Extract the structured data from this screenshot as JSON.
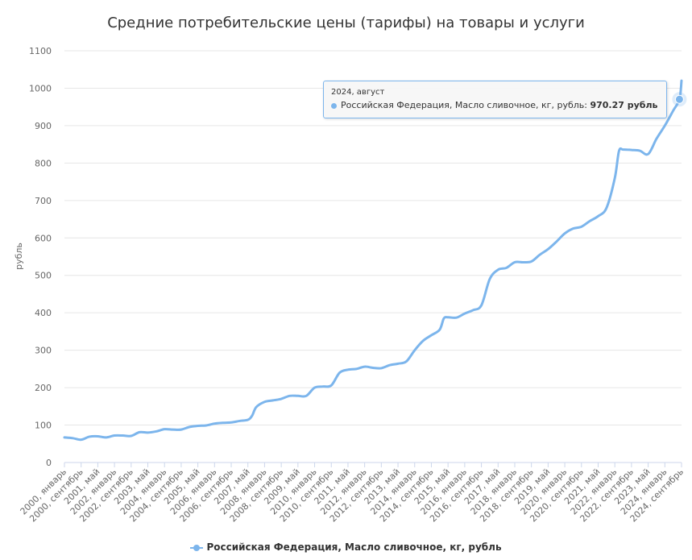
{
  "colors": {
    "series": "#7cb5ec",
    "grid": "#e6e6e6",
    "text": "#333333",
    "axis_text": "#666666"
  },
  "chart_data": {
    "type": "line",
    "title": "Средние потребительские цены (тарифы) на товары и услуги",
    "ylabel": "рубль",
    "ylim": [
      0,
      1100
    ],
    "yticks": [
      0,
      100,
      200,
      300,
      400,
      500,
      600,
      700,
      800,
      900,
      1000,
      1100
    ],
    "grid": true,
    "legend_position": "bottom-center",
    "xtick_labels": [
      "2000, январь",
      "2000, сентябрь",
      "2001, май",
      "2002, январь",
      "2002, сентябрь",
      "2003, май",
      "2004, январь",
      "2004, сентябрь",
      "2005, май",
      "2006, январь",
      "2006, сентябрь",
      "2007, май",
      "2008, январь",
      "2008, сентябрь",
      "2009, май",
      "2010, январь",
      "2010, сентябрь",
      "2011, май",
      "2012, январь",
      "2012, сентябрь",
      "2013, май",
      "2014, январь",
      "2014, сентябрь",
      "2015, май",
      "2016, январь",
      "2016, сентябрь",
      "2017, май",
      "2018, январь",
      "2018, сентябрь",
      "2019, май",
      "2020, январь",
      "2020, сентябрь",
      "2021, май",
      "2022, январь",
      "2022, сентябрь",
      "2023, май",
      "2024, январь",
      "2024, сентябрь"
    ],
    "series": [
      {
        "name": "Российская Федерация, Масло сливочное, кг, рубль",
        "points": [
          [
            "2000-01",
            67
          ],
          [
            "2000-05",
            65
          ],
          [
            "2000-09",
            61
          ],
          [
            "2001-01",
            69
          ],
          [
            "2001-05",
            70
          ],
          [
            "2001-09",
            67
          ],
          [
            "2002-01",
            72
          ],
          [
            "2002-05",
            72
          ],
          [
            "2002-09",
            71
          ],
          [
            "2003-01",
            81
          ],
          [
            "2003-05",
            80
          ],
          [
            "2003-09",
            83
          ],
          [
            "2004-01",
            89
          ],
          [
            "2004-05",
            88
          ],
          [
            "2004-09",
            88
          ],
          [
            "2005-01",
            95
          ],
          [
            "2005-05",
            98
          ],
          [
            "2005-09",
            99
          ],
          [
            "2006-01",
            104
          ],
          [
            "2006-05",
            106
          ],
          [
            "2006-09",
            107
          ],
          [
            "2007-01",
            111
          ],
          [
            "2007-05",
            114
          ],
          [
            "2007-07",
            125
          ],
          [
            "2007-09",
            148
          ],
          [
            "2008-01",
            162
          ],
          [
            "2008-05",
            166
          ],
          [
            "2008-09",
            170
          ],
          [
            "2009-01",
            178
          ],
          [
            "2009-05",
            178
          ],
          [
            "2009-09",
            178
          ],
          [
            "2010-01",
            200
          ],
          [
            "2010-05",
            203
          ],
          [
            "2010-09",
            206
          ],
          [
            "2011-01",
            240
          ],
          [
            "2011-05",
            248
          ],
          [
            "2011-09",
            250
          ],
          [
            "2012-01",
            256
          ],
          [
            "2012-05",
            253
          ],
          [
            "2012-09",
            252
          ],
          [
            "2013-01",
            260
          ],
          [
            "2013-05",
            264
          ],
          [
            "2013-09",
            270
          ],
          [
            "2014-01",
            300
          ],
          [
            "2014-05",
            325
          ],
          [
            "2014-09",
            340
          ],
          [
            "2015-01",
            355
          ],
          [
            "2015-03",
            385
          ],
          [
            "2015-05",
            388
          ],
          [
            "2015-09",
            387
          ],
          [
            "2016-01",
            398
          ],
          [
            "2016-05",
            407
          ],
          [
            "2016-09",
            420
          ],
          [
            "2017-01",
            490
          ],
          [
            "2017-05",
            515
          ],
          [
            "2017-09",
            520
          ],
          [
            "2018-01",
            535
          ],
          [
            "2018-05",
            535
          ],
          [
            "2018-09",
            537
          ],
          [
            "2019-01",
            555
          ],
          [
            "2019-05",
            570
          ],
          [
            "2019-09",
            590
          ],
          [
            "2020-01",
            612
          ],
          [
            "2020-05",
            625
          ],
          [
            "2020-09",
            630
          ],
          [
            "2021-01",
            645
          ],
          [
            "2021-05",
            658
          ],
          [
            "2021-09",
            680
          ],
          [
            "2022-01",
            760
          ],
          [
            "2022-03",
            832
          ],
          [
            "2022-05",
            836
          ],
          [
            "2022-09",
            835
          ],
          [
            "2023-01",
            833
          ],
          [
            "2023-05",
            824
          ],
          [
            "2023-09",
            865
          ],
          [
            "2024-01",
            900
          ],
          [
            "2024-05",
            940
          ],
          [
            "2024-08",
            970.27
          ],
          [
            "2024-09",
            1020
          ]
        ]
      }
    ],
    "tooltip": {
      "date": "2024, август",
      "series": "Российская Федерация, Масло сливочное, кг, рубль:",
      "value": "970.27 рубль",
      "point": [
        "2024-08",
        970.27
      ]
    }
  }
}
